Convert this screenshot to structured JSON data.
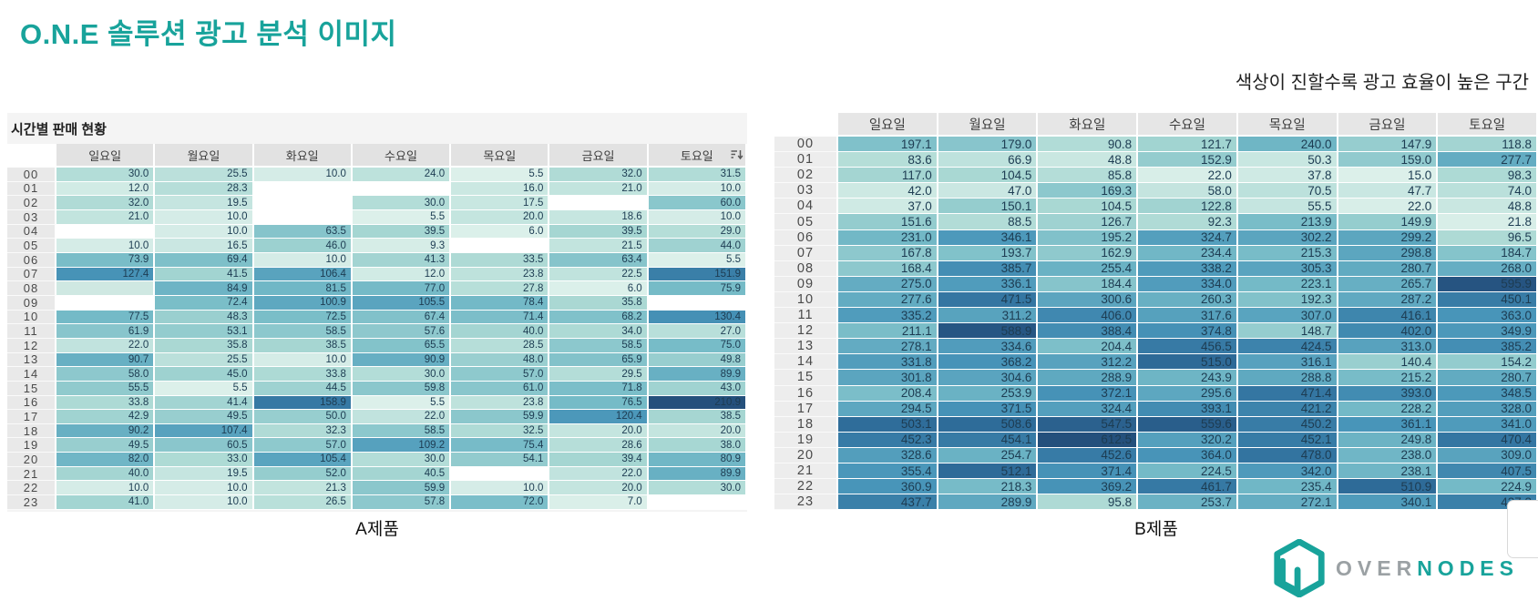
{
  "title": "O.N.E 솔루션 광고 분석 이미지",
  "subtitle": "색상이 진할수록 광고 효율이 높은 구간",
  "colors": {
    "accent": "#18a39b",
    "heat_stops": [
      "#dcf0ea",
      "#a9d8d3",
      "#74bac7",
      "#4895b9",
      "#30709d",
      "#24507c"
    ],
    "heat_positions": [
      0,
      0.15,
      0.35,
      0.58,
      0.8,
      1
    ],
    "empty_cell": "#cfe8e2",
    "cell_text": "#1d3c52"
  },
  "chart_data": [
    {
      "type": "heatmap",
      "title": "시간별 판매 현황",
      "caption": "A제품",
      "legend_note": "색상이 진할수록 광고 효율이 높은 구간",
      "columns": [
        "일요일",
        "월요일",
        "화요일",
        "수요일",
        "목요일",
        "금요일",
        "토요일"
      ],
      "rows": [
        "00",
        "01",
        "02",
        "03",
        "04",
        "05",
        "06",
        "07",
        "08",
        "09",
        "10",
        "11",
        "12",
        "13",
        "14",
        "15",
        "16",
        "17",
        "18",
        "19",
        "20",
        "21",
        "22",
        "23"
      ],
      "values": [
        [
          30.0,
          25.5,
          10.0,
          24.0,
          5.5,
          32.0,
          31.5
        ],
        [
          12.0,
          28.3,
          null,
          null,
          16.0,
          21.0,
          10.0
        ],
        [
          32.0,
          19.5,
          null,
          30.0,
          17.5,
          null,
          60.0
        ],
        [
          21.0,
          10.0,
          null,
          5.5,
          20.0,
          18.6,
          10.0
        ],
        [
          null,
          10.0,
          63.5,
          39.5,
          6.0,
          39.5,
          29.0
        ],
        [
          10.0,
          16.5,
          46.0,
          9.3,
          null,
          21.5,
          44.0
        ],
        [
          73.9,
          69.4,
          10.0,
          41.3,
          33.5,
          63.4,
          5.5
        ],
        [
          127.4,
          41.5,
          106.4,
          12.0,
          23.8,
          22.5,
          151.9
        ],
        [
          "",
          84.9,
          81.5,
          77.0,
          27.8,
          6.0,
          75.9
        ],
        [
          null,
          72.4,
          100.9,
          105.5,
          78.4,
          35.8,
          null
        ],
        [
          77.5,
          48.3,
          72.5,
          67.4,
          71.4,
          68.2,
          130.4
        ],
        [
          61.9,
          53.1,
          58.5,
          57.6,
          40.0,
          34.0,
          27.0
        ],
        [
          22.0,
          35.8,
          38.5,
          65.5,
          28.5,
          58.5,
          75.0
        ],
        [
          90.7,
          25.5,
          10.0,
          90.9,
          48.0,
          65.9,
          49.8
        ],
        [
          58.0,
          45.0,
          33.8,
          30.0,
          57.0,
          29.5,
          89.9
        ],
        [
          55.5,
          5.5,
          44.5,
          59.8,
          61.0,
          71.8,
          43.0
        ],
        [
          33.8,
          41.4,
          158.9,
          5.5,
          23.8,
          76.5,
          210.9
        ],
        [
          42.9,
          49.5,
          50.0,
          22.0,
          59.9,
          120.4,
          38.5
        ],
        [
          90.2,
          107.4,
          32.3,
          58.5,
          32.5,
          20.0,
          20.0
        ],
        [
          49.5,
          60.5,
          57.0,
          109.2,
          75.4,
          28.6,
          38.0
        ],
        [
          82.0,
          33.0,
          105.4,
          30.0,
          54.1,
          39.4,
          80.9
        ],
        [
          40.0,
          19.5,
          52.0,
          40.5,
          null,
          22.0,
          89.9
        ],
        [
          10.0,
          10.0,
          21.3,
          59.9,
          10.0,
          20.0,
          30.0
        ],
        [
          41.0,
          10.0,
          26.5,
          57.8,
          72.0,
          7.0,
          null
        ]
      ],
      "sortable_column": "토요일"
    },
    {
      "type": "heatmap",
      "caption": "B제품",
      "columns": [
        "일요일",
        "월요일",
        "화요일",
        "수요일",
        "목요일",
        "금요일",
        "토요일"
      ],
      "rows": [
        "00",
        "01",
        "02",
        "03",
        "04",
        "05",
        "06",
        "07",
        "08",
        "09",
        "10",
        "11",
        "12",
        "13",
        "14",
        "15",
        "16",
        "17",
        "18",
        "19",
        "20",
        "21",
        "22",
        "23"
      ],
      "values": [
        [
          197.1,
          179.0,
          90.8,
          121.7,
          240.0,
          147.9,
          118.8
        ],
        [
          83.6,
          66.9,
          48.8,
          152.9,
          50.3,
          159.0,
          277.7
        ],
        [
          117.0,
          104.5,
          85.8,
          22.0,
          37.8,
          15.0,
          98.3
        ],
        [
          42.0,
          47.0,
          169.3,
          58.0,
          70.5,
          47.7,
          74.0
        ],
        [
          37.0,
          150.1,
          104.5,
          122.8,
          55.5,
          22.0,
          48.8
        ],
        [
          151.6,
          88.5,
          126.7,
          92.3,
          213.9,
          149.9,
          21.8
        ],
        [
          231.0,
          346.1,
          195.2,
          324.7,
          302.2,
          299.2,
          96.5
        ],
        [
          167.8,
          193.7,
          162.9,
          234.4,
          215.3,
          298.8,
          184.7
        ],
        [
          168.4,
          385.7,
          255.4,
          338.2,
          305.3,
          280.7,
          268.0
        ],
        [
          275.0,
          336.1,
          184.4,
          334.0,
          223.1,
          265.7,
          595.9
        ],
        [
          277.6,
          471.5,
          300.6,
          260.3,
          192.3,
          287.2,
          450.1
        ],
        [
          335.2,
          311.2,
          406.0,
          317.6,
          307.0,
          416.1,
          363.0
        ],
        [
          211.1,
          588.9,
          388.4,
          374.8,
          148.7,
          402.0,
          349.9
        ],
        [
          278.1,
          334.6,
          204.4,
          456.5,
          424.5,
          313.0,
          385.2
        ],
        [
          331.8,
          368.2,
          312.2,
          515.0,
          316.1,
          140.4,
          154.2
        ],
        [
          301.8,
          304.6,
          288.9,
          243.9,
          288.8,
          215.2,
          280.7
        ],
        [
          208.4,
          253.9,
          372.1,
          295.6,
          471.4,
          393.0,
          348.5
        ],
        [
          294.5,
          371.5,
          324.4,
          393.1,
          421.2,
          228.2,
          328.0
        ],
        [
          503.1,
          508.6,
          547.5,
          559.6,
          450.2,
          361.1,
          341.0
        ],
        [
          452.3,
          454.1,
          612.5,
          320.2,
          452.1,
          249.8,
          470.4
        ],
        [
          328.6,
          254.7,
          452.6,
          364.0,
          478.0,
          238.0,
          309.0
        ],
        [
          355.4,
          512.1,
          371.4,
          224.5,
          342.0,
          238.1,
          407.5
        ],
        [
          360.9,
          218.3,
          369.2,
          461.7,
          235.4,
          510.9,
          224.9
        ],
        [
          437.7,
          289.9,
          95.8,
          253.7,
          272.1,
          340.1,
          437.3
        ]
      ]
    }
  ],
  "logo": {
    "brand_gray": "OVER",
    "brand_teal": "NODES"
  }
}
